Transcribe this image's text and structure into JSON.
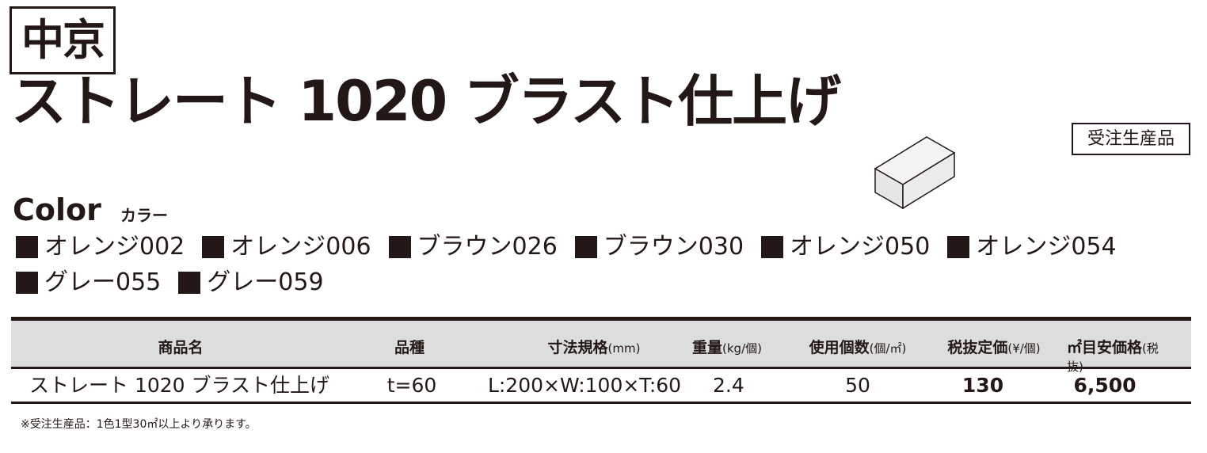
{
  "brand": "中京",
  "title": "ストレート 1020 ブラスト仕上げ",
  "badge": "受注生産品",
  "color_section": {
    "heading": "Color",
    "subheading": "カラー",
    "swatch_color": "#231815",
    "items": [
      "オレンジ002",
      "オレンジ006",
      "ブラウン026",
      "ブラウン030",
      "オレンジ050",
      "オレンジ054",
      "グレー055",
      "グレー059"
    ]
  },
  "table": {
    "headers": [
      "商品名",
      "品種",
      "寸法規格",
      "(mm)",
      "重量",
      "(kg/個)",
      "使用個数",
      "(個/㎡)",
      "税抜定価",
      "(¥/個)",
      "㎡目安価格",
      "(税抜)"
    ],
    "row": {
      "name": "ストレート 1020 ブラスト仕上げ",
      "type": "t=60",
      "size": "L:200×W:100×T:60",
      "weight": "2.4",
      "qty": "50",
      "price": "130",
      "sqm_price": "6,500"
    }
  },
  "note": "※受注生産品：1色1型30㎡以上より承ります。"
}
